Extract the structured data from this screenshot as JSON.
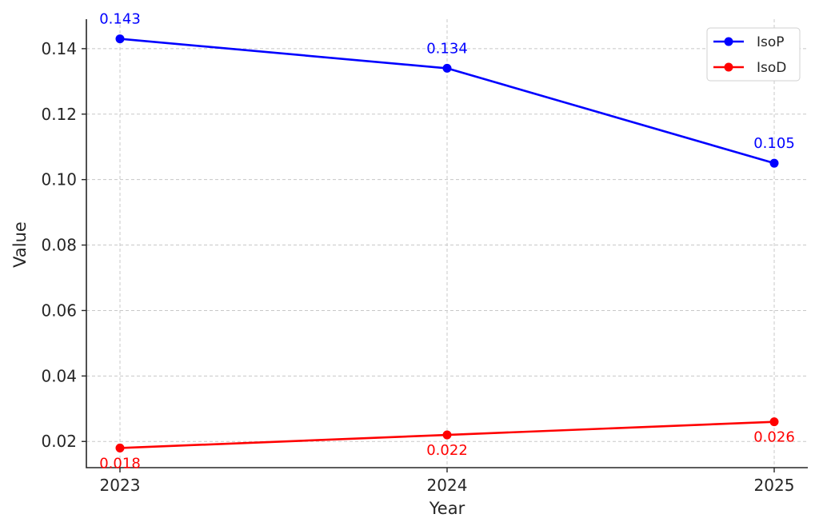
{
  "chart_data": {
    "type": "line",
    "xlabel": "Year",
    "ylabel": "Value",
    "categories": [
      "2023",
      "2024",
      "2025"
    ],
    "x": [
      2023,
      2024,
      2025
    ],
    "ylim": [
      0.012,
      0.149
    ],
    "yticks": [
      0.02,
      0.04,
      0.06,
      0.08,
      0.1,
      0.12,
      0.14
    ],
    "ytick_labels": [
      "0.02",
      "0.04",
      "0.06",
      "0.08",
      "0.10",
      "0.12",
      "0.14"
    ],
    "grid": true,
    "legend_position": "top-right",
    "series": [
      {
        "name": "IsoP",
        "color": "#0000ff",
        "values": [
          0.143,
          0.134,
          0.105
        ],
        "labels": [
          "0.143",
          "0.134",
          "0.105"
        ],
        "label_position": "above"
      },
      {
        "name": "IsoD",
        "color": "#ff0000",
        "values": [
          0.018,
          0.022,
          0.026
        ],
        "labels": [
          "0.018",
          "0.022",
          "0.026"
        ],
        "label_position": "below"
      }
    ]
  }
}
